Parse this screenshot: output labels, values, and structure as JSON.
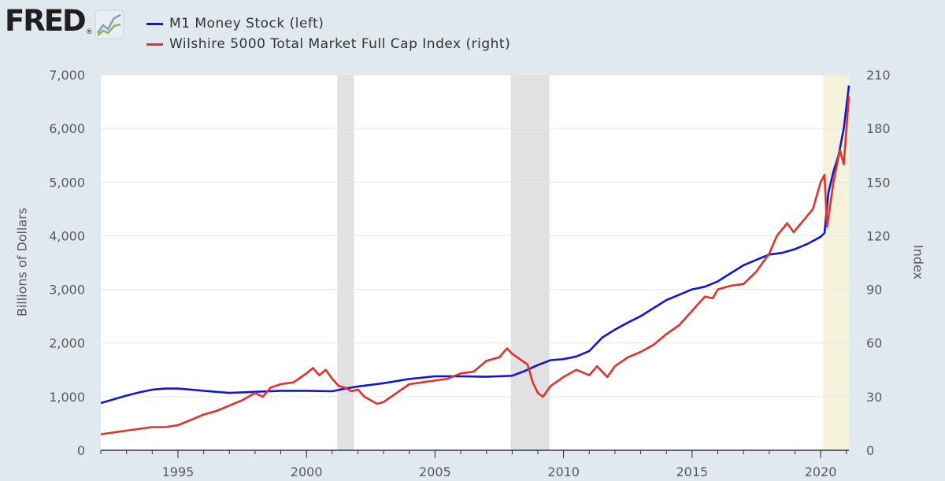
{
  "header": {
    "logo_text": "FRED",
    "logo_reg": "®",
    "logo_icon": "line-chart-icon"
  },
  "legend": [
    {
      "label": "M1 Money Stock (left)",
      "color": "#1414d4"
    },
    {
      "label": "Wilshire 5000 Total Market Full Cap Index (right)",
      "color": "#e0312a"
    }
  ],
  "chart_data": {
    "type": "line",
    "xlabel": "",
    "ylabel": "Billions of Dollars",
    "y2label": "Index",
    "xlim": [
      1992.0,
      2021.1
    ],
    "ylim": [
      0,
      7000
    ],
    "y2lim": [
      0,
      210
    ],
    "x_ticks": [
      1995,
      2000,
      2005,
      2010,
      2015,
      2020
    ],
    "y_ticks": [
      "0",
      "1,000",
      "2,000",
      "3,000",
      "4,000",
      "5,000",
      "6,000",
      "7,000"
    ],
    "y2_ticks": [
      "0",
      "30",
      "60",
      "90",
      "120",
      "150",
      "180",
      "210"
    ],
    "grid": true,
    "recessions": [
      {
        "start": 2001.2,
        "end": 2001.85,
        "color": "#e1e1e1"
      },
      {
        "start": 2007.95,
        "end": 2009.45,
        "color": "#e1e1e1"
      },
      {
        "start": 2020.1,
        "end": 2021.1,
        "color": "#f5f2dc"
      }
    ],
    "series": [
      {
        "name": "M1 Money Stock (left)",
        "axis": "left",
        "color": "#1414d4",
        "x": [
          1992.0,
          1992.5,
          1993.0,
          1993.5,
          1994.0,
          1994.5,
          1995.0,
          1996.0,
          1997.0,
          1997.5,
          1998.0,
          1999.0,
          2000.0,
          2001.0,
          2001.5,
          2002.0,
          2003.0,
          2004.0,
          2005.0,
          2006.0,
          2007.0,
          2008.0,
          2008.5,
          2009.0,
          2009.5,
          2010.0,
          2010.5,
          2011.0,
          2011.5,
          2012.0,
          2012.5,
          2013.0,
          2013.5,
          2014.0,
          2014.5,
          2015.0,
          2015.5,
          2016.0,
          2016.5,
          2017.0,
          2017.5,
          2018.0,
          2018.5,
          2019.0,
          2019.5,
          2020.0,
          2020.15,
          2020.3,
          2020.5,
          2020.7,
          2020.9,
          2021.1
        ],
        "values": [
          880,
          950,
          1020,
          1080,
          1130,
          1150,
          1150,
          1110,
          1070,
          1080,
          1090,
          1110,
          1110,
          1100,
          1150,
          1190,
          1250,
          1330,
          1380,
          1380,
          1370,
          1390,
          1480,
          1590,
          1680,
          1700,
          1750,
          1850,
          2100,
          2250,
          2380,
          2500,
          2650,
          2800,
          2900,
          3000,
          3050,
          3150,
          3300,
          3450,
          3550,
          3650,
          3680,
          3750,
          3850,
          3980,
          4050,
          4800,
          5200,
          5500,
          6000,
          6800
        ]
      },
      {
        "name": "Wilshire 5000 Total Market Full Cap Index (right)",
        "axis": "right",
        "color": "#e0312a",
        "x": [
          1992.0,
          1993.0,
          1994.0,
          1994.5,
          1995.0,
          1995.5,
          1996.0,
          1996.5,
          1997.0,
          1997.5,
          1998.0,
          1998.3,
          1998.6,
          1999.0,
          1999.5,
          2000.0,
          2000.25,
          2000.5,
          2000.75,
          2001.0,
          2001.25,
          2001.5,
          2001.75,
          2002.0,
          2002.25,
          2002.5,
          2002.75,
          2003.0,
          2003.5,
          2004.0,
          2004.5,
          2005.0,
          2005.5,
          2006.0,
          2006.5,
          2007.0,
          2007.5,
          2007.8,
          2008.0,
          2008.3,
          2008.6,
          2008.8,
          2009.0,
          2009.2,
          2009.5,
          2010.0,
          2010.5,
          2011.0,
          2011.3,
          2011.7,
          2012.0,
          2012.5,
          2013.0,
          2013.5,
          2014.0,
          2014.5,
          2015.0,
          2015.5,
          2015.8,
          2016.0,
          2016.5,
          2017.0,
          2017.5,
          2018.0,
          2018.3,
          2018.7,
          2018.95,
          2019.3,
          2019.7,
          2020.0,
          2020.15,
          2020.25,
          2020.5,
          2020.75,
          2020.9,
          2021.1
        ],
        "values": [
          9,
          11,
          13,
          13,
          14,
          17,
          20,
          22,
          25,
          28,
          32,
          30,
          35,
          37,
          38,
          43,
          46,
          42,
          45,
          40,
          36,
          35,
          33,
          34,
          30,
          28,
          26,
          27,
          32,
          37,
          38,
          39,
          40,
          43,
          44,
          50,
          52,
          57,
          54,
          51,
          48,
          38,
          32,
          30,
          36,
          41,
          45,
          42,
          47,
          41,
          47,
          52,
          55,
          59,
          65,
          70,
          78,
          86,
          85,
          90,
          92,
          93,
          100,
          110,
          120,
          127,
          122,
          128,
          135,
          150,
          154,
          125,
          150,
          168,
          160,
          198
        ]
      }
    ]
  }
}
